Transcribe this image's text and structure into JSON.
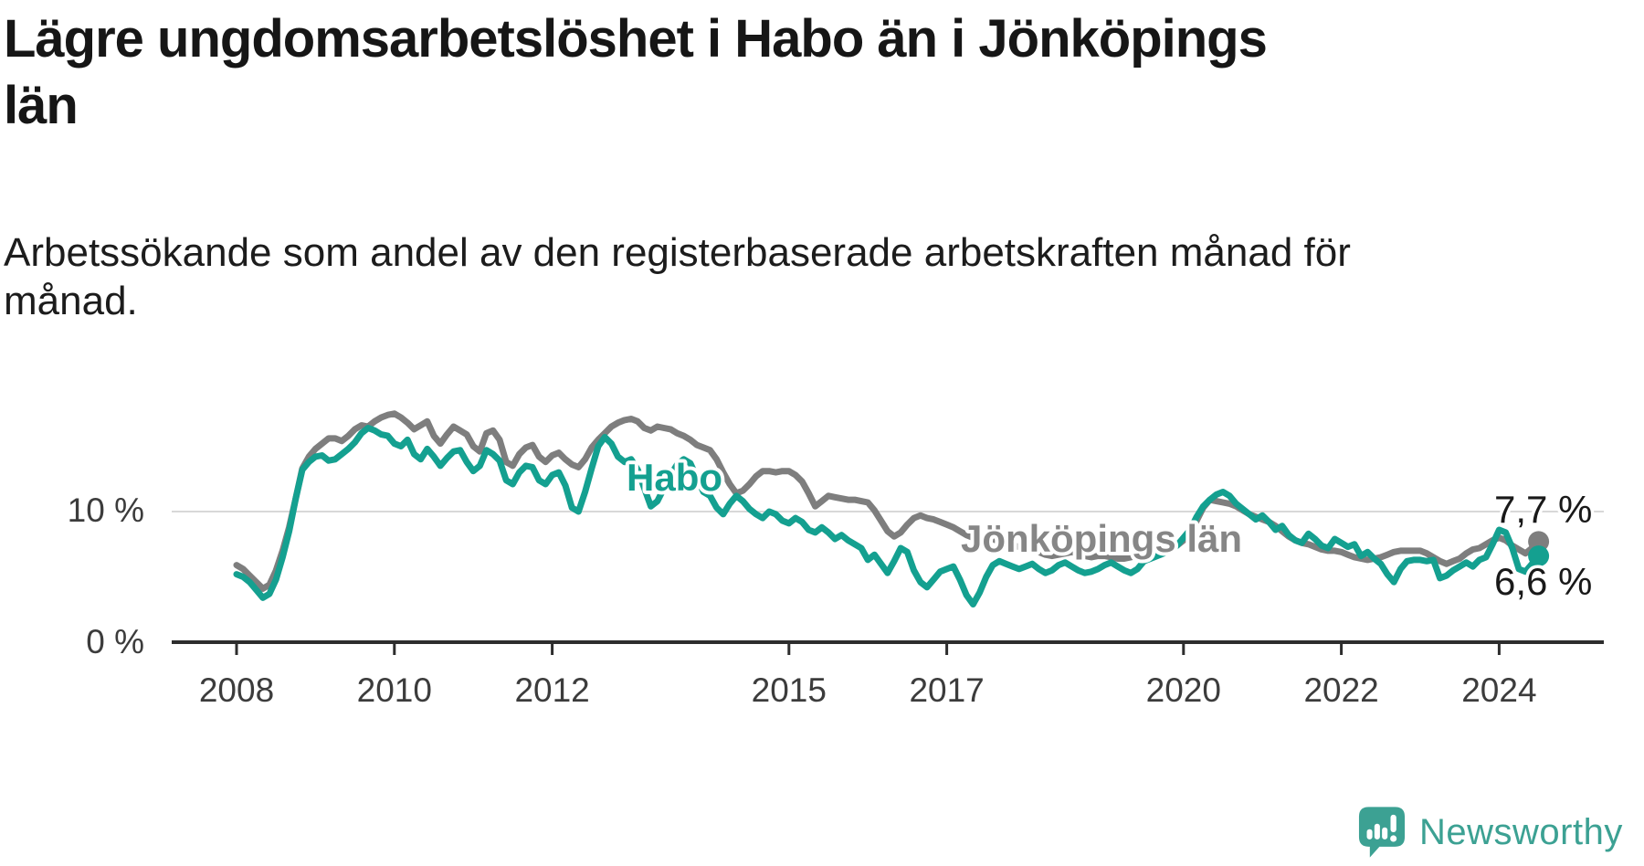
{
  "header": {
    "title_lines": [
      "Lägre ungdomsarbetslöshet i Habo än i Jönköpings",
      "län"
    ],
    "subtitle_lines": [
      "Arbetssökande som andel av den registerbaserade arbetskraften månad för",
      "månad."
    ]
  },
  "chart_data": {
    "type": "line",
    "title": "Lägre ungdomsarbetslöshet i Habo än i Jönköpings län",
    "subtitle": "Arbetssökande som andel av den registerbaserade arbetskraften månad för månad.",
    "unit": "%",
    "x_start_year": 2008,
    "points_per_year": 12,
    "x_end": "2024 (mid-year)",
    "ylim": [
      0,
      19
    ],
    "grid": "single horizontal gridline at 10%",
    "legend_position": "inline labels on lines",
    "yticks": [
      {
        "value": 0,
        "label": "0 %"
      },
      {
        "value": 10,
        "label": "10 %"
      }
    ],
    "xticks": [
      {
        "year": 2008,
        "label": "2008"
      },
      {
        "year": 2010,
        "label": "2010"
      },
      {
        "year": 2012,
        "label": "2012"
      },
      {
        "year": 2015,
        "label": "2015"
      },
      {
        "year": 2017,
        "label": "2017"
      },
      {
        "year": 2020,
        "label": "2020"
      },
      {
        "year": 2022,
        "label": "2022"
      },
      {
        "year": 2024,
        "label": "2024"
      }
    ],
    "series": [
      {
        "name": "Jönköpings län",
        "color": "#7E7E7E",
        "label_color": "#868686",
        "end_value": 7.7,
        "end_label": "7,7 %",
        "values": [
          5.9,
          5.6,
          5.1,
          4.6,
          4.1,
          4.4,
          5.5,
          7.0,
          8.8,
          11.0,
          13.3,
          14.2,
          14.8,
          15.2,
          15.6,
          15.6,
          15.4,
          15.8,
          16.3,
          16.6,
          16.5,
          16.9,
          17.2,
          17.4,
          17.5,
          17.2,
          16.8,
          16.3,
          16.6,
          16.9,
          15.8,
          15.2,
          15.9,
          16.5,
          16.2,
          15.9,
          15.0,
          14.6,
          16.0,
          16.2,
          15.5,
          13.8,
          13.5,
          14.4,
          14.9,
          15.1,
          14.2,
          13.8,
          14.3,
          14.5,
          14.0,
          13.6,
          13.4,
          14.0,
          14.9,
          15.5,
          16.0,
          16.5,
          16.8,
          17.0,
          17.1,
          16.9,
          16.4,
          16.2,
          16.5,
          16.4,
          16.3,
          16.0,
          15.8,
          15.5,
          15.1,
          14.9,
          14.7,
          14.0,
          13.0,
          12.1,
          11.4,
          11.6,
          12.1,
          12.7,
          13.1,
          13.1,
          13.0,
          13.1,
          13.1,
          12.8,
          12.3,
          11.4,
          10.4,
          10.8,
          11.2,
          11.1,
          11.0,
          10.9,
          10.9,
          10.8,
          10.7,
          10.1,
          9.3,
          8.5,
          8.1,
          8.4,
          9.0,
          9.5,
          9.7,
          9.5,
          9.4,
          9.2,
          9.0,
          8.8,
          8.5,
          8.2,
          8.0,
          7.9,
          8.0,
          7.9,
          7.7,
          7.5,
          7.4,
          7.3,
          7.2,
          7.0,
          6.9,
          6.7,
          6.6,
          6.7,
          6.8,
          6.9,
          6.8,
          6.6,
          6.5,
          6.6,
          6.6,
          6.5,
          6.4,
          6.4,
          6.5,
          6.7,
          7.0,
          7.1,
          7.0,
          7.1,
          7.2,
          7.4,
          7.8,
          8.3,
          9.3,
          10.3,
          10.9,
          10.8,
          10.7,
          10.6,
          10.4,
          10.1,
          9.8,
          9.6,
          9.4,
          9.2,
          8.9,
          8.5,
          8.1,
          7.8,
          7.6,
          7.5,
          7.3,
          7.1,
          7.0,
          7.0,
          6.9,
          6.7,
          6.5,
          6.4,
          6.3,
          6.4,
          6.5,
          6.7,
          6.9,
          7.0,
          7.0,
          7.0,
          7.0,
          6.8,
          6.5,
          6.2,
          6.0,
          6.2,
          6.4,
          6.8,
          7.1,
          7.2,
          7.5,
          7.8,
          8.0,
          7.8,
          7.4,
          7.1,
          6.8,
          7.2,
          7.7
        ]
      },
      {
        "name": "Habo",
        "color": "#14A090",
        "label_color": "#14A090",
        "end_value": 6.6,
        "end_label": "6,6 %",
        "values": [
          5.2,
          5.0,
          4.6,
          4.0,
          3.4,
          3.7,
          4.8,
          6.5,
          8.5,
          11.0,
          13.2,
          13.8,
          14.2,
          14.3,
          13.9,
          14.0,
          14.4,
          14.8,
          15.3,
          16.0,
          16.4,
          16.2,
          15.9,
          15.8,
          15.2,
          15.0,
          15.5,
          14.4,
          14.0,
          14.8,
          14.2,
          13.5,
          14.1,
          14.6,
          14.7,
          13.8,
          13.1,
          13.5,
          14.7,
          14.4,
          13.9,
          12.4,
          12.1,
          13.0,
          13.5,
          13.4,
          12.4,
          12.1,
          12.8,
          13.0,
          12.0,
          10.3,
          10.0,
          11.5,
          13.3,
          15.0,
          15.7,
          15.2,
          14.2,
          13.8,
          14.0,
          13.2,
          11.8,
          10.4,
          10.8,
          11.8,
          12.8,
          13.6,
          14.0,
          13.7,
          12.6,
          11.5,
          11.2,
          10.3,
          9.8,
          10.6,
          11.2,
          10.8,
          10.2,
          9.8,
          9.5,
          10.0,
          9.8,
          9.3,
          9.1,
          9.5,
          9.2,
          8.6,
          8.4,
          8.8,
          8.4,
          7.9,
          8.2,
          7.8,
          7.5,
          7.2,
          6.3,
          6.7,
          6.0,
          5.3,
          6.2,
          7.2,
          6.9,
          5.5,
          4.6,
          4.2,
          4.8,
          5.4,
          5.6,
          5.8,
          4.8,
          3.6,
          2.9,
          3.8,
          5.0,
          5.9,
          6.2,
          6.0,
          5.8,
          5.6,
          5.8,
          6.0,
          5.6,
          5.3,
          5.5,
          5.9,
          6.1,
          5.8,
          5.5,
          5.3,
          5.4,
          5.6,
          5.9,
          6.1,
          5.8,
          5.5,
          5.3,
          5.6,
          6.2,
          6.4,
          6.6,
          6.8,
          7.0,
          7.4,
          8.0,
          8.6,
          9.6,
          10.4,
          10.9,
          11.3,
          11.5,
          11.2,
          10.6,
          10.2,
          9.8,
          9.4,
          9.7,
          9.2,
          8.6,
          8.9,
          8.2,
          7.8,
          7.6,
          8.3,
          7.9,
          7.4,
          7.2,
          7.9,
          7.6,
          7.3,
          7.5,
          6.6,
          6.9,
          6.4,
          6.0,
          5.2,
          4.6,
          5.6,
          6.2,
          6.3,
          6.3,
          6.2,
          6.3,
          4.9,
          5.1,
          5.5,
          5.8,
          6.1,
          5.8,
          6.3,
          6.5,
          7.5,
          8.6,
          8.4,
          7.2,
          5.6,
          5.4,
          6.0,
          6.6
        ]
      }
    ]
  },
  "footer": {
    "brand": "Newsworthy",
    "brand_color": "#3CA193",
    "logo_icon": "speech-bubble-bar-chart-icon"
  }
}
